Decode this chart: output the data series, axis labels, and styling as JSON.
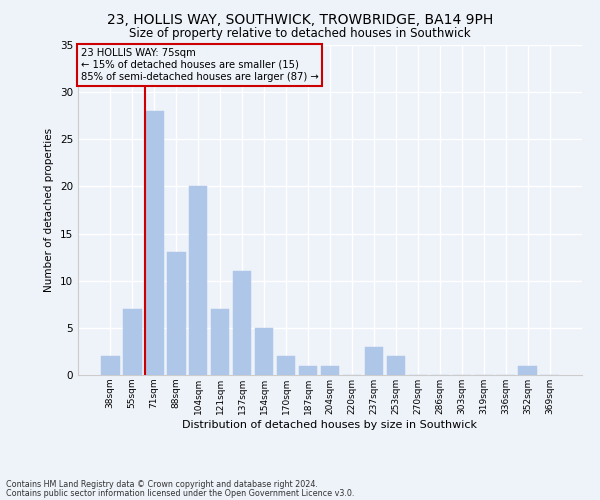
{
  "title": "23, HOLLIS WAY, SOUTHWICK, TROWBRIDGE, BA14 9PH",
  "subtitle": "Size of property relative to detached houses in Southwick",
  "xlabel": "Distribution of detached houses by size in Southwick",
  "ylabel": "Number of detached properties",
  "bar_color": "#aec6e8",
  "bar_edgecolor": "#aec6e8",
  "categories": [
    "38sqm",
    "55sqm",
    "71sqm",
    "88sqm",
    "104sqm",
    "121sqm",
    "137sqm",
    "154sqm",
    "170sqm",
    "187sqm",
    "204sqm",
    "220sqm",
    "237sqm",
    "253sqm",
    "270sqm",
    "286sqm",
    "303sqm",
    "319sqm",
    "336sqm",
    "352sqm",
    "369sqm"
  ],
  "values": [
    2,
    7,
    28,
    13,
    20,
    7,
    11,
    5,
    2,
    1,
    1,
    0,
    3,
    2,
    0,
    0,
    0,
    0,
    0,
    1,
    0
  ],
  "ylim": [
    0,
    35
  ],
  "yticks": [
    0,
    5,
    10,
    15,
    20,
    25,
    30,
    35
  ],
  "vline_index": 2,
  "vline_color": "#cc0000",
  "annotation_text": "23 HOLLIS WAY: 75sqm\n← 15% of detached houses are smaller (15)\n85% of semi-detached houses are larger (87) →",
  "annotation_box_color": "#cc0000",
  "background_color": "#eef2f9",
  "grid_color": "#ffffff",
  "footnote1": "Contains HM Land Registry data © Crown copyright and database right 2024.",
  "footnote2": "Contains public sector information licensed under the Open Government Licence v3.0."
}
